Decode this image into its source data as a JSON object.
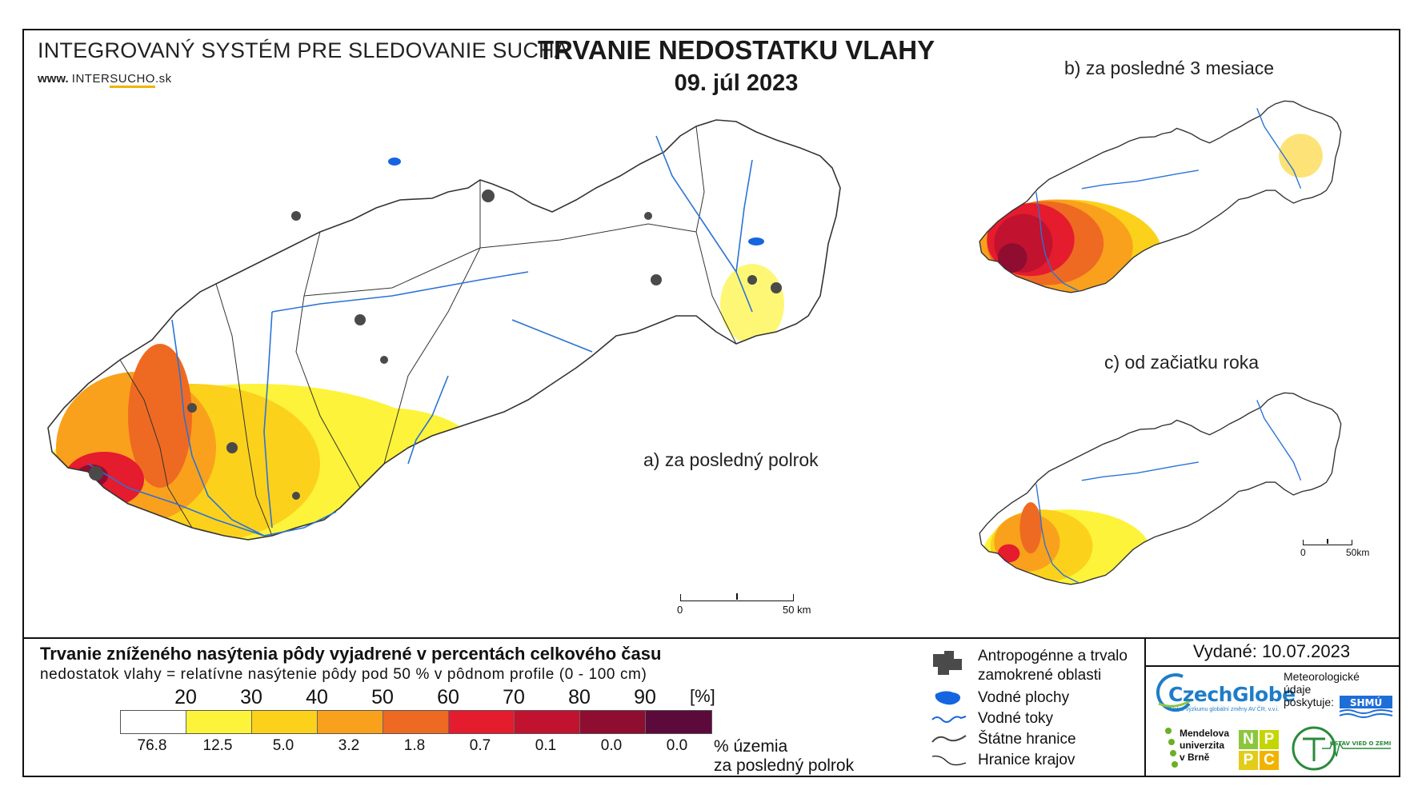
{
  "header": {
    "system_title": "INTEGROVANÝ SYSTÉM PRE SLEDOVANIE SUCHA",
    "website_prefix": "www.",
    "website_mid": "INTER",
    "website_brand": "SUCHO",
    "website_suffix": ".sk",
    "map_title": "TRVANIE NEDOSTATKU VLAHY",
    "map_date": "09. júl 2023"
  },
  "maps": {
    "main_label": "a) za posledný polrok",
    "inset_b_label": "b) za posledné 3 mesiace",
    "inset_c_label": "c) od začiatku roka",
    "scale_main": {
      "start": "0",
      "end": "50 km"
    },
    "scale_inset": {
      "start": "0",
      "end": "50km"
    }
  },
  "legend": {
    "title": "Trvanie zníženého nasýtenia pôdy vyjadrené v percentách celkového času",
    "subtitle": "nedostatok vlahy = relatívne nasýtenie pôdy pod 50 % v pôdnom profile (0 - 100 cm)",
    "unit": "[%]",
    "ticks": [
      "20",
      "30",
      "40",
      "50",
      "60",
      "70",
      "80",
      "90"
    ],
    "classes": [
      {
        "color": "#ffffff",
        "pct": "76.8"
      },
      {
        "color": "#fdf33a",
        "pct": "12.5"
      },
      {
        "color": "#fbd11c",
        "pct": "5.0"
      },
      {
        "color": "#f9a11c",
        "pct": "3.2"
      },
      {
        "color": "#ee6a22",
        "pct": "1.8"
      },
      {
        "color": "#e51b2e",
        "pct": "0.7"
      },
      {
        "color": "#c1122f",
        "pct": "0.1"
      },
      {
        "color": "#8e0d30",
        "pct": "0.0"
      },
      {
        "color": "#5c0a3c",
        "pct": "0.0"
      }
    ],
    "pct_note_line1": "% územia",
    "pct_note_line2": "za posledný polrok",
    "symbols": [
      {
        "icon": "anthropogenic-area-icon",
        "label": "Antropogénne a trvalo\nzamokrené oblasti"
      },
      {
        "icon": "water-body-icon",
        "label": "Vodné plochy"
      },
      {
        "icon": "river-icon",
        "label": "Vodné toky"
      },
      {
        "icon": "state-border-icon",
        "label": "Štátne hranice"
      },
      {
        "icon": "region-border-icon",
        "label": "Hranice krajov"
      }
    ]
  },
  "issued": "Vydané: 10.07.2023",
  "logos": {
    "czechglobe": "CzechGlobe",
    "czechglobe_sub": "Ústav výzkumu globální změny AV ČR, v.v.i.",
    "meteo_text": "Meteorologické\núdaje\nposkytuje:",
    "shmu": "SHMÚ",
    "mendel": "Mendelova\nuniverzita\nv Brně",
    "nppc": [
      "N",
      "P",
      "P",
      "C"
    ],
    "uvz": "ÚSTAV VIED O ZEMI"
  },
  "colors": {
    "river": "#2b73d6",
    "water": "#1565e0",
    "urban": "#4a4a4a",
    "border": "#333333"
  }
}
